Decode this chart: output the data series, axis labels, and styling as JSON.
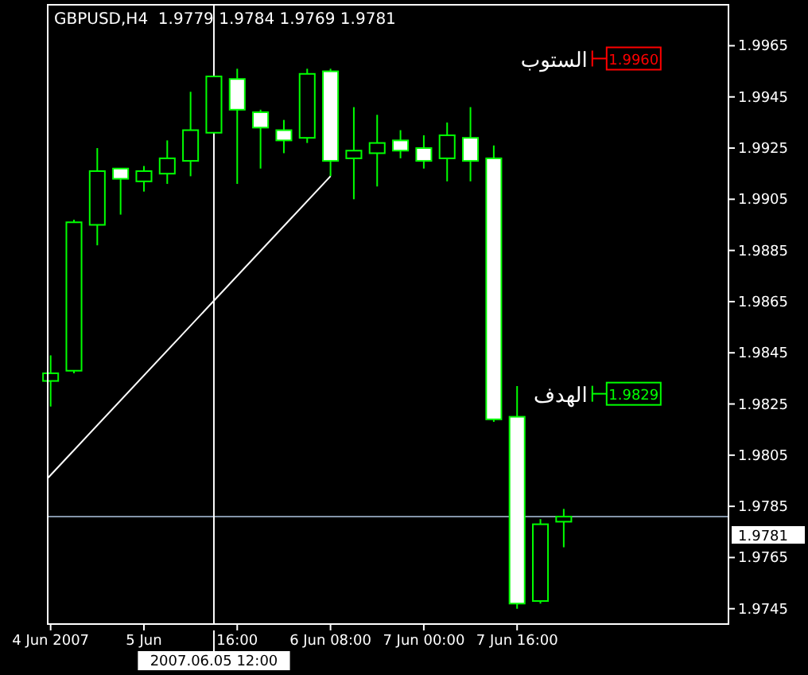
{
  "chart_data": {
    "type": "candlestick",
    "title": "GBPUSD,H4  1.9779 1.9784 1.9769 1.9781",
    "x": [
      "2007-06-04T08:00",
      "2007-06-04T12:00",
      "2007-06-04T16:00",
      "2007-06-04T20:00",
      "2007-06-05T00:00",
      "2007-06-05T04:00",
      "2007-06-05T08:00",
      "2007-06-05T12:00",
      "2007-06-05T16:00",
      "2007-06-05T20:00",
      "2007-06-06T00:00",
      "2007-06-06T04:00",
      "2007-06-06T08:00",
      "2007-06-06T12:00",
      "2007-06-06T16:00",
      "2007-06-06T20:00",
      "2007-06-07T00:00",
      "2007-06-07T04:00",
      "2007-06-07T08:00",
      "2007-06-07T12:00",
      "2007-06-07T16:00",
      "2007-06-07T20:00",
      "2007-06-08T00:00"
    ],
    "series": [
      {
        "color": "#00ff00",
        "ohlc": [
          [
            1.9834,
            1.9844,
            1.9824,
            1.9837
          ],
          [
            1.9838,
            1.9897,
            1.9837,
            1.9896
          ],
          [
            1.9895,
            1.9925,
            1.9887,
            1.9916
          ],
          [
            1.9917,
            1.9917,
            1.9899,
            1.9913
          ],
          [
            1.9912,
            1.9918,
            1.9908,
            1.9916
          ],
          [
            1.9915,
            1.9928,
            1.9911,
            1.9921
          ],
          [
            1.992,
            1.9947,
            1.9914,
            1.9932
          ],
          [
            1.9931,
            1.9953,
            1.9931,
            1.9953
          ],
          [
            1.9952,
            1.9956,
            1.9911,
            1.994
          ],
          [
            1.9939,
            1.994,
            1.9917,
            1.9933
          ],
          [
            1.9932,
            1.9936,
            1.9923,
            1.9928
          ],
          [
            1.9929,
            1.9956,
            1.9927,
            1.9954
          ],
          [
            1.9955,
            1.9956,
            1.9914,
            1.992
          ],
          [
            1.9921,
            1.9941,
            1.9905,
            1.9924
          ],
          [
            1.9923,
            1.9938,
            1.991,
            1.9927
          ],
          [
            1.9928,
            1.9932,
            1.9921,
            1.9924
          ],
          [
            1.9925,
            1.993,
            1.9917,
            1.992
          ],
          [
            1.9921,
            1.9935,
            1.9912,
            1.993
          ],
          [
            1.9929,
            1.9941,
            1.9912,
            1.992
          ],
          [
            1.9921,
            1.9926,
            1.9818,
            1.9819
          ],
          [
            1.982,
            1.9832,
            1.9745,
            1.9747
          ],
          [
            1.9748,
            1.978,
            1.9747,
            1.9778
          ],
          [
            1.9779,
            1.9784,
            1.9769,
            1.9781
          ]
        ]
      },
      {
        "type": "line",
        "color": "#ffffff",
        "x": [
          "2007-06-04T07:30",
          "2007-06-06T08:00"
        ],
        "values": [
          1.9796,
          1.9914
        ]
      }
    ],
    "xlim": [
      "2007-06-04T07:30",
      "2007-06-09T04:15"
    ],
    "xticks": [
      {
        "value": "2007-06-04T08:00",
        "label": "4 Jun 2007"
      },
      {
        "value": "2007-06-05T00:00",
        "label": "5 Jun"
      },
      {
        "value": "2007-06-05T16:00",
        "label": "16:00"
      },
      {
        "value": "2007-06-06T08:00",
        "label": "6 Jun 08:00"
      },
      {
        "value": "2007-06-07T00:00",
        "label": "7 Jun 00:00"
      },
      {
        "value": "2007-06-07T16:00",
        "label": "7 Jun 16:00"
      }
    ],
    "ylim": [
      1.9739,
      1.9981
    ],
    "yticks": [
      1.9745,
      1.9765,
      1.9785,
      1.9805,
      1.9825,
      1.9845,
      1.9865,
      1.9885,
      1.9905,
      1.9925,
      1.9945,
      1.9965
    ],
    "ref_lines": [
      {
        "axis": "y",
        "value": 1.9781,
        "label": "1.9781",
        "color": "#8494a8",
        "line_style": "solid"
      },
      {
        "axis": "y",
        "value": 1.996,
        "label": "1.9960",
        "color": "#ff0000"
      },
      {
        "axis": "y",
        "value": 1.9829,
        "label": "1.9829",
        "color": "#00ff00"
      },
      {
        "axis": "x",
        "value": "2007-06-05T12:00",
        "label": "2007.06.05 12:00",
        "color": "#ffffff"
      }
    ],
    "annotations": [
      "الستوب",
      "الهدف"
    ],
    "grid": false
  }
}
